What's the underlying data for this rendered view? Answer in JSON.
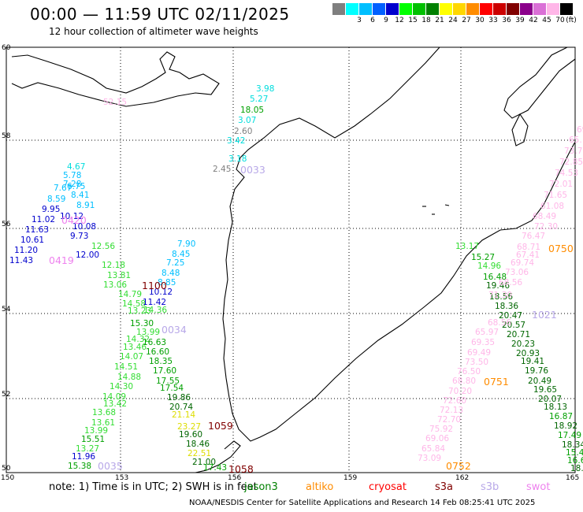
{
  "header": {
    "title": "00:00 — 11:59 UTC 02/11/2025",
    "subtitle": "12 hour collection of altimeter wave heights"
  },
  "colorbar": {
    "unit_label": "(ft)",
    "bins": [
      {
        "label": "",
        "color": "#7f7f7f"
      },
      {
        "label": "3",
        "color": "#00ffff"
      },
      {
        "label": "6",
        "color": "#00bfff"
      },
      {
        "label": "9",
        "color": "#0060ff"
      },
      {
        "label": "12",
        "color": "#0000cd"
      },
      {
        "label": "15",
        "color": "#00ff00"
      },
      {
        "label": "18",
        "color": "#00c000"
      },
      {
        "label": "21",
        "color": "#008000"
      },
      {
        "label": "24",
        "color": "#ffff00"
      },
      {
        "label": "27",
        "color": "#ffd700"
      },
      {
        "label": "30",
        "color": "#ff8c00"
      },
      {
        "label": "33",
        "color": "#ff0000"
      },
      {
        "label": "36",
        "color": "#cc0000"
      },
      {
        "label": "39",
        "color": "#800000"
      },
      {
        "label": "42",
        "color": "#8b008b"
      },
      {
        "label": "45",
        "color": "#da70d6"
      },
      {
        "label": "70",
        "color": "#ffb6e8"
      },
      {
        "label": "",
        "color": "#000000"
      }
    ]
  },
  "map": {
    "lat_labels": [
      "60",
      "58",
      "56",
      "54",
      "52",
      "50"
    ],
    "lon_labels": [
      "150",
      "153",
      "156",
      "159",
      "162",
      "165"
    ]
  },
  "pass_tags": [
    {
      "text": "0033",
      "color": "#b8a8e8"
    },
    {
      "text": "0420",
      "color": "#ee82ee"
    },
    {
      "text": "0419",
      "color": "#ee82ee"
    },
    {
      "text": "1100",
      "color": "#800000"
    },
    {
      "text": "0034",
      "color": "#b8a8e8"
    },
    {
      "text": "1059",
      "color": "#800000"
    },
    {
      "text": "1058",
      "color": "#800000"
    },
    {
      "text": "0035",
      "color": "#b8a8e8"
    },
    {
      "text": "0750",
      "color": "#ff8c00"
    },
    {
      "text": "1021",
      "color": "#b8a8e8"
    },
    {
      "text": "0751",
      "color": "#ff8c00"
    },
    {
      "text": "0752",
      "color": "#ff8c00"
    },
    {
      "text": "52.15",
      "color": "#ffb6e8"
    }
  ],
  "observations": [
    {
      "v": "3.98",
      "c": "#00dddd"
    },
    {
      "v": "5.27",
      "c": "#00dddd"
    },
    {
      "v": "18.05",
      "c": "#00a000"
    },
    {
      "v": "3.07",
      "c": "#00dddd"
    },
    {
      "v": "2.60",
      "c": "#7f7f7f"
    },
    {
      "v": "3.42",
      "c": "#00dddd"
    },
    {
      "v": "3.18",
      "c": "#00dddd"
    },
    {
      "v": "2.45",
      "c": "#7f7f7f"
    },
    {
      "v": "4.67",
      "c": "#00dddd"
    },
    {
      "v": "5.78",
      "c": "#00bfff"
    },
    {
      "v": "7.28",
      "c": "#00bfff"
    },
    {
      "v": "6.75",
      "c": "#00bfff"
    },
    {
      "v": "7.67",
      "c": "#00bfff"
    },
    {
      "v": "8.59",
      "c": "#00bfff"
    },
    {
      "v": "8.41",
      "c": "#00bfff"
    },
    {
      "v": "9.95",
      "c": "#0000cd"
    },
    {
      "v": "8.91",
      "c": "#00bfff"
    },
    {
      "v": "11.02",
      "c": "#0000cd"
    },
    {
      "v": "10.12",
      "c": "#0000cd"
    },
    {
      "v": "11.63",
      "c": "#0000cd"
    },
    {
      "v": "10.08",
      "c": "#0000cd"
    },
    {
      "v": "10.61",
      "c": "#0000cd"
    },
    {
      "v": "9.73",
      "c": "#0000cd"
    },
    {
      "v": "11.20",
      "c": "#0000cd"
    },
    {
      "v": "12.00",
      "c": "#0000cd"
    },
    {
      "v": "11.43",
      "c": "#0000cd"
    },
    {
      "v": "12.56",
      "c": "#33dd33"
    },
    {
      "v": "12.18",
      "c": "#33dd33"
    },
    {
      "v": "13.81",
      "c": "#33dd33"
    },
    {
      "v": "13.06",
      "c": "#33dd33"
    },
    {
      "v": "14.79",
      "c": "#33dd33"
    },
    {
      "v": "14.58",
      "c": "#33dd33"
    },
    {
      "v": "13.23",
      "c": "#33dd33"
    },
    {
      "v": "15.30",
      "c": "#00a000"
    },
    {
      "v": "13.99",
      "c": "#33dd33"
    },
    {
      "v": "14.32",
      "c": "#33dd33"
    },
    {
      "v": "13.46",
      "c": "#33dd33"
    },
    {
      "v": "14.07",
      "c": "#33dd33"
    },
    {
      "v": "14.51",
      "c": "#33dd33"
    },
    {
      "v": "14.88",
      "c": "#33dd33"
    },
    {
      "v": "14.30",
      "c": "#33dd33"
    },
    {
      "v": "14.09",
      "c": "#33dd33"
    },
    {
      "v": "13.42",
      "c": "#33dd33"
    },
    {
      "v": "13.68",
      "c": "#33dd33"
    },
    {
      "v": "13.61",
      "c": "#33dd33"
    },
    {
      "v": "13.99",
      "c": "#33dd33"
    },
    {
      "v": "15.51",
      "c": "#00a000"
    },
    {
      "v": "13.27",
      "c": "#33dd33"
    },
    {
      "v": "11.96",
      "c": "#0000cd"
    },
    {
      "v": "15.38",
      "c": "#00a000"
    },
    {
      "v": "7.90",
      "c": "#00bfff"
    },
    {
      "v": "8.45",
      "c": "#00bfff"
    },
    {
      "v": "7.25",
      "c": "#00bfff"
    },
    {
      "v": "8.48",
      "c": "#00bfff"
    },
    {
      "v": "8.85",
      "c": "#00bfff"
    },
    {
      "v": "10.12",
      "c": "#0000cd"
    },
    {
      "v": "11.42",
      "c": "#0000cd"
    },
    {
      "v": "14.36",
      "c": "#33dd33"
    },
    {
      "v": "16.63",
      "c": "#00a000"
    },
    {
      "v": "16.60",
      "c": "#00a000"
    },
    {
      "v": "18.35",
      "c": "#00a000"
    },
    {
      "v": "17.60",
      "c": "#00a000"
    },
    {
      "v": "17.55",
      "c": "#00a000"
    },
    {
      "v": "17.54",
      "c": "#00a000"
    },
    {
      "v": "19.86",
      "c": "#006600"
    },
    {
      "v": "20.74",
      "c": "#006600"
    },
    {
      "v": "21.14",
      "c": "#dddd00"
    },
    {
      "v": "23.27",
      "c": "#dddd00"
    },
    {
      "v": "19.60",
      "c": "#006600"
    },
    {
      "v": "18.46",
      "c": "#006600"
    },
    {
      "v": "22.51",
      "c": "#dddd00"
    },
    {
      "v": "21.00",
      "c": "#006600"
    },
    {
      "v": "17.43",
      "c": "#00a000"
    },
    {
      "v": "13.17",
      "c": "#33dd33"
    },
    {
      "v": "15.27",
      "c": "#00a000"
    },
    {
      "v": "14.96",
      "c": "#33dd33"
    },
    {
      "v": "16.48",
      "c": "#00a000"
    },
    {
      "v": "19.46",
      "c": "#006600"
    },
    {
      "v": "18.56",
      "c": "#006600"
    },
    {
      "v": "18.36",
      "c": "#006600"
    },
    {
      "v": "20.47",
      "c": "#006600"
    },
    {
      "v": "20.57",
      "c": "#006600"
    },
    {
      "v": "20.71",
      "c": "#006600"
    },
    {
      "v": "20.23",
      "c": "#006600"
    },
    {
      "v": "20.93",
      "c": "#006600"
    },
    {
      "v": "19.41",
      "c": "#006600"
    },
    {
      "v": "19.76",
      "c": "#006600"
    },
    {
      "v": "20.49",
      "c": "#006600"
    },
    {
      "v": "19.65",
      "c": "#006600"
    },
    {
      "v": "20.07",
      "c": "#006600"
    },
    {
      "v": "18.13",
      "c": "#006600"
    },
    {
      "v": "16.87",
      "c": "#00a000"
    },
    {
      "v": "18.92",
      "c": "#006600"
    },
    {
      "v": "17.49",
      "c": "#00a000"
    },
    {
      "v": "18.34",
      "c": "#006600"
    },
    {
      "v": "15.42",
      "c": "#00a000"
    },
    {
      "v": "16.6",
      "c": "#00a000"
    },
    {
      "v": "18.",
      "c": "#006600"
    },
    {
      "v": "69",
      "c": "#ffb6e8"
    },
    {
      "v": "65.",
      "c": "#ffb6e8"
    },
    {
      "v": "73.7",
      "c": "#ffb6e8"
    },
    {
      "v": "72.85",
      "c": "#ffb6e8"
    },
    {
      "v": "74.53",
      "c": "#ffb6e8"
    },
    {
      "v": "72.01",
      "c": "#ffb6e8"
    },
    {
      "v": "71.65",
      "c": "#ffb6e8"
    },
    {
      "v": "61.08",
      "c": "#ffb6e8"
    },
    {
      "v": "68.49",
      "c": "#ffb6e8"
    },
    {
      "v": "72.30",
      "c": "#ffb6e8"
    },
    {
      "v": "76.47",
      "c": "#ffb6e8"
    },
    {
      "v": "68.71",
      "c": "#ffb6e8"
    },
    {
      "v": "67.41",
      "c": "#ffb6e8"
    },
    {
      "v": "69.74",
      "c": "#ffb6e8"
    },
    {
      "v": "73.06",
      "c": "#ffb6e8"
    },
    {
      "v": "68.56",
      "c": "#ffb6e8"
    },
    {
      "v": "71.30",
      "c": "#ffb6e8"
    },
    {
      "v": "68.56",
      "c": "#ffb6e8"
    },
    {
      "v": "65.97",
      "c": "#ffb6e8"
    },
    {
      "v": "69.35",
      "c": "#ffb6e8"
    },
    {
      "v": "69.49",
      "c": "#ffb6e8"
    },
    {
      "v": "73.50",
      "c": "#ffb6e8"
    },
    {
      "v": "76.50",
      "c": "#ffb6e8"
    },
    {
      "v": "68.80",
      "c": "#ffb6e8"
    },
    {
      "v": "70.20",
      "c": "#ffb6e8"
    },
    {
      "v": "72.60",
      "c": "#ffb6e8"
    },
    {
      "v": "72.13",
      "c": "#ffb6e8"
    },
    {
      "v": "72.70",
      "c": "#ffb6e8"
    },
    {
      "v": "75.92",
      "c": "#ffb6e8"
    },
    {
      "v": "69.06",
      "c": "#ffb6e8"
    },
    {
      "v": "65.84",
      "c": "#ffb6e8"
    },
    {
      "v": "73.09",
      "c": "#ffb6e8"
    }
  ],
  "footer": {
    "note": "note:  1) Time is in UTC;  2) SWH is in feet",
    "satellites": [
      {
        "name": "jason3",
        "color": "#008000"
      },
      {
        "name": "altiko",
        "color": "#ff8c00"
      },
      {
        "name": "cryosat",
        "color": "#ff0000"
      },
      {
        "name": "s3a",
        "color": "#800000"
      },
      {
        "name": "s3b",
        "color": "#b8a8e8"
      },
      {
        "name": "swot",
        "color": "#ee82ee"
      }
    ],
    "credit": "NOAA/NESDIS Center for Satellite Applications and Research   14 Feb 08:25:41 UTC 2025"
  }
}
